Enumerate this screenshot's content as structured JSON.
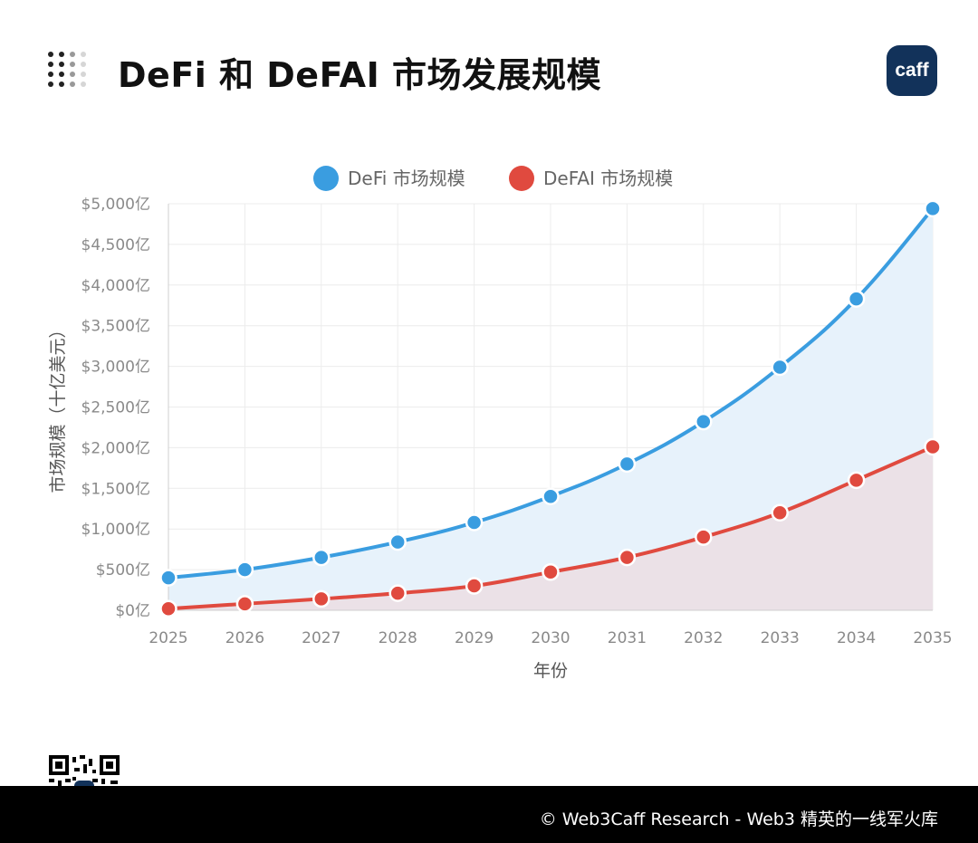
{
  "header": {
    "title": "DeFi 和 DeFAI 市场发展规模",
    "logo_text": "caff"
  },
  "footer": {
    "text": "© Web3Caff Research - Web3 精英的一线军火库"
  },
  "chart_data": {
    "type": "area",
    "x": [
      2025,
      2026,
      2027,
      2028,
      2029,
      2030,
      2031,
      2032,
      2033,
      2034,
      2035
    ],
    "series": [
      {
        "name": "DeFi 市场规模",
        "color": "#3a9de0",
        "fill": "#e7f2fb",
        "values": [
          400,
          500,
          650,
          840,
          1080,
          1400,
          1800,
          2320,
          2990,
          3830,
          4940
        ]
      },
      {
        "name": "DeFAI 市场规模",
        "color": "#e04a3f",
        "fill": "#ebe1e7",
        "values": [
          20,
          80,
          140,
          210,
          300,
          470,
          650,
          900,
          1200,
          1600,
          2010
        ]
      }
    ],
    "xlabel": "年份",
    "ylabel": "市场规模（十亿美元）",
    "ylim": [
      0,
      5000
    ],
    "y_ticks": [
      0,
      500,
      1000,
      1500,
      2000,
      2500,
      3000,
      3500,
      4000,
      4500,
      5000
    ],
    "y_tick_labels": [
      "$0亿",
      "$500亿",
      "$1,000亿",
      "$1,500亿",
      "$2,000亿",
      "$2,500亿",
      "$3,000亿",
      "$3,500亿",
      "$4,000亿",
      "$4,500亿",
      "$5,000亿"
    ],
    "grid": true,
    "legend_position": "top-center"
  }
}
